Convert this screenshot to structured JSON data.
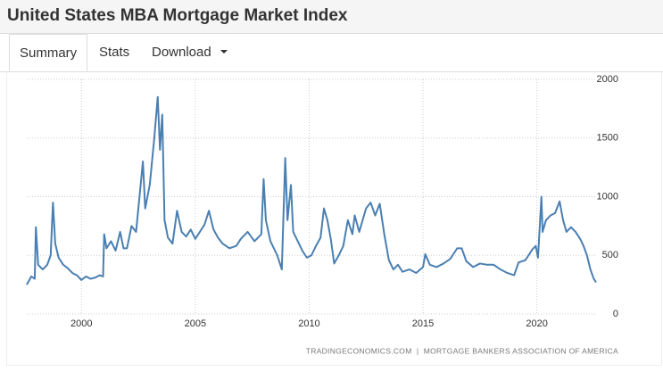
{
  "header": {
    "title": "United States MBA Mortgage Market Index"
  },
  "tabs": [
    "Summary",
    "Stats",
    "Download"
  ],
  "chart_data": {
    "type": "line",
    "source": "TRADINGECONOMICS.COM  |  MORTGAGE BANKERS ASSOCIATION OF AMERICA",
    "x": [
      1997.6,
      1997.8,
      1997.95,
      1998.0,
      1998.1,
      1998.3,
      1998.5,
      1998.65,
      1998.75,
      1998.85,
      1999.0,
      1999.2,
      1999.4,
      1999.6,
      1999.8,
      2000.0,
      2000.2,
      2000.4,
      2000.6,
      2000.8,
      2000.95,
      2001.0,
      2001.1,
      2001.3,
      2001.5,
      2001.7,
      2001.85,
      2002.0,
      2002.2,
      2002.4,
      2002.6,
      2002.7,
      2002.8,
      2003.0,
      2003.2,
      2003.35,
      2003.45,
      2003.55,
      2003.65,
      2003.8,
      2004.0,
      2004.2,
      2004.4,
      2004.6,
      2004.8,
      2005.0,
      2005.2,
      2005.4,
      2005.6,
      2005.8,
      2006.0,
      2006.2,
      2006.5,
      2006.8,
      2007.0,
      2007.3,
      2007.6,
      2007.9,
      2008.0,
      2008.1,
      2008.3,
      2008.6,
      2008.8,
      2008.95,
      2009.05,
      2009.2,
      2009.3,
      2009.5,
      2009.7,
      2009.9,
      2010.1,
      2010.3,
      2010.5,
      2010.65,
      2010.8,
      2010.95,
      2011.1,
      2011.3,
      2011.5,
      2011.7,
      2011.9,
      2012.0,
      2012.2,
      2012.5,
      2012.7,
      2012.9,
      2013.1,
      2013.3,
      2013.5,
      2013.7,
      2013.9,
      2014.1,
      2014.4,
      2014.7,
      2015.0,
      2015.1,
      2015.3,
      2015.6,
      2015.9,
      2016.2,
      2016.5,
      2016.7,
      2016.9,
      2017.2,
      2017.5,
      2017.8,
      2018.1,
      2018.4,
      2018.7,
      2019.0,
      2019.2,
      2019.5,
      2019.8,
      2019.95,
      2020.05,
      2020.2,
      2020.25,
      2020.4,
      2020.6,
      2020.8,
      2021.0,
      2021.15,
      2021.3,
      2021.5,
      2021.7,
      2021.9,
      2022.05,
      2022.2,
      2022.35,
      2022.5,
      2022.6
    ],
    "values": [
      250,
      320,
      300,
      740,
      420,
      380,
      420,
      500,
      950,
      600,
      480,
      420,
      390,
      350,
      330,
      290,
      320,
      300,
      310,
      330,
      320,
      680,
      560,
      620,
      540,
      700,
      560,
      560,
      750,
      700,
      1100,
      1300,
      900,
      1100,
      1500,
      1850,
      1400,
      1700,
      800,
      650,
      600,
      880,
      700,
      660,
      720,
      640,
      700,
      760,
      880,
      720,
      650,
      600,
      560,
      580,
      640,
      700,
      620,
      680,
      1150,
      800,
      620,
      500,
      380,
      1330,
      800,
      1100,
      700,
      620,
      540,
      480,
      500,
      580,
      650,
      900,
      800,
      640,
      430,
      500,
      580,
      800,
      680,
      840,
      700,
      900,
      950,
      840,
      940,
      680,
      460,
      380,
      420,
      360,
      380,
      350,
      400,
      510,
      420,
      400,
      430,
      470,
      560,
      560,
      450,
      400,
      430,
      420,
      420,
      380,
      350,
      330,
      440,
      460,
      550,
      580,
      480,
      1000,
      700,
      800,
      840,
      860,
      960,
      800,
      700,
      740,
      700,
      640,
      580,
      500,
      380,
      300,
      270
    ],
    "color": "#4a7fb1",
    "xlim": [
      1997.6,
      2022.6
    ],
    "ylim": [
      0,
      2000
    ],
    "xticks": [
      2000,
      2005,
      2010,
      2015,
      2020
    ],
    "yticks": [
      0,
      500,
      1000,
      1500,
      2000
    ],
    "grid": true
  }
}
